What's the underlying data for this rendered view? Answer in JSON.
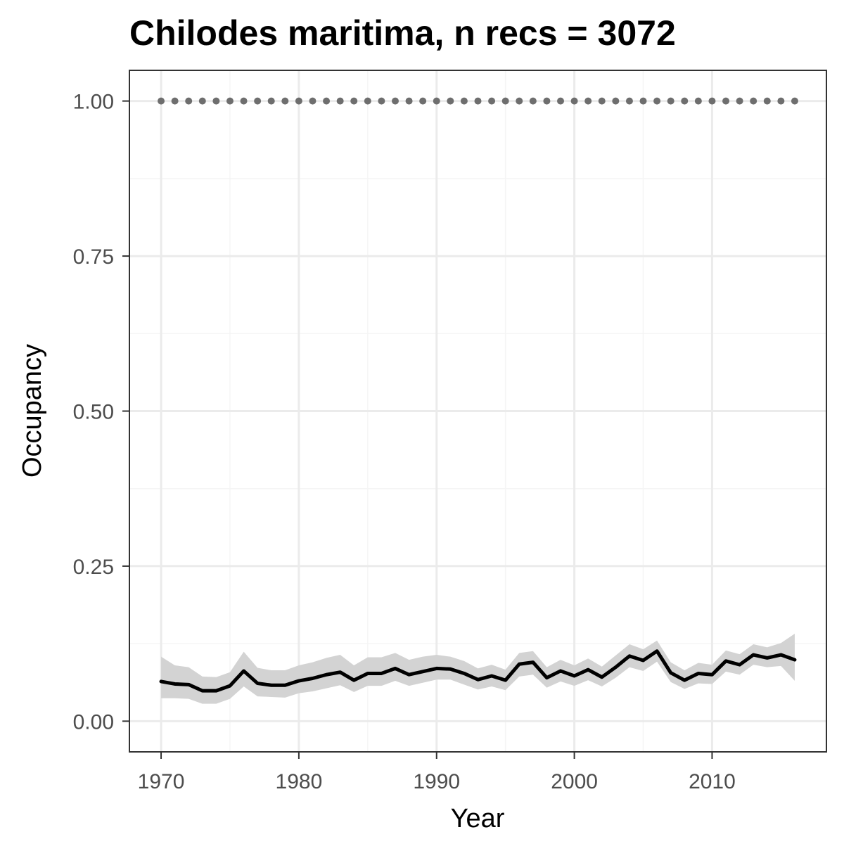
{
  "chart_data": {
    "type": "line",
    "title": "Chilodes maritima, n recs = 3072",
    "xlabel": "Year",
    "ylabel": "Occupancy",
    "xlim": [
      1967.7,
      2018.3
    ],
    "ylim": [
      -0.0495,
      1.0495
    ],
    "x_ticks": [
      1970,
      1980,
      1990,
      2000,
      2010
    ],
    "y_ticks": [
      0,
      0.25,
      0.5,
      0.75,
      1
    ],
    "y_tick_labels": [
      "0.00",
      "0.25",
      "0.50",
      "0.75",
      "1.00"
    ],
    "grid": true,
    "legend": "none",
    "series": [
      {
        "role": "occupancy-mean",
        "style": "solid",
        "color": "#000000",
        "x": [
          1970,
          1971,
          1972,
          1973,
          1974,
          1975,
          1976,
          1977,
          1978,
          1979,
          1980,
          1981,
          1982,
          1983,
          1984,
          1985,
          1986,
          1987,
          1988,
          1989,
          1990,
          1991,
          1992,
          1993,
          1994,
          1995,
          1996,
          1997,
          1998,
          1999,
          2000,
          2001,
          2002,
          2003,
          2004,
          2005,
          2006,
          2007,
          2008,
          2009,
          2010,
          2011,
          2012,
          2013,
          2014,
          2015,
          2016
        ],
        "values": [
          0.064,
          0.06,
          0.059,
          0.049,
          0.049,
          0.057,
          0.081,
          0.061,
          0.058,
          0.058,
          0.065,
          0.069,
          0.075,
          0.079,
          0.066,
          0.077,
          0.077,
          0.085,
          0.075,
          0.08,
          0.085,
          0.084,
          0.077,
          0.067,
          0.073,
          0.066,
          0.092,
          0.095,
          0.07,
          0.081,
          0.073,
          0.083,
          0.071,
          0.087,
          0.105,
          0.098,
          0.113,
          0.078,
          0.066,
          0.077,
          0.075,
          0.097,
          0.091,
          0.107,
          0.102,
          0.107,
          0.099
        ]
      },
      {
        "role": "detectability",
        "style": "dotted",
        "color": "#6e6e6e",
        "x": [
          1970,
          1971,
          1972,
          1973,
          1974,
          1975,
          1976,
          1977,
          1978,
          1979,
          1980,
          1981,
          1982,
          1983,
          1984,
          1985,
          1986,
          1987,
          1988,
          1989,
          1990,
          1991,
          1992,
          1993,
          1994,
          1995,
          1996,
          1997,
          1998,
          1999,
          2000,
          2001,
          2002,
          2003,
          2004,
          2005,
          2006,
          2007,
          2008,
          2009,
          2010,
          2011,
          2012,
          2013,
          2014,
          2015,
          2016
        ],
        "values": [
          1,
          1,
          1,
          1,
          1,
          1,
          1,
          1,
          1,
          1,
          1,
          1,
          1,
          1,
          1,
          1,
          1,
          1,
          1,
          1,
          1,
          1,
          1,
          1,
          1,
          1,
          1,
          1,
          1,
          1,
          1,
          1,
          1,
          1,
          1,
          1,
          1,
          1,
          1,
          1,
          1,
          1,
          1,
          1,
          1,
          1,
          1
        ]
      }
    ],
    "ribbon": {
      "color": "#d3d3d3",
      "x": [
        1970,
        1971,
        1972,
        1973,
        1974,
        1975,
        1976,
        1977,
        1978,
        1979,
        1980,
        1981,
        1982,
        1983,
        1984,
        1985,
        1986,
        1987,
        1988,
        1989,
        1990,
        1991,
        1992,
        1993,
        1994,
        1995,
        1996,
        1997,
        1998,
        1999,
        2000,
        2001,
        2002,
        2003,
        2004,
        2005,
        2006,
        2007,
        2008,
        2009,
        2010,
        2011,
        2012,
        2013,
        2014,
        2015,
        2016
      ],
      "lower": [
        0.037,
        0.037,
        0.036,
        0.028,
        0.028,
        0.036,
        0.056,
        0.04,
        0.039,
        0.038,
        0.045,
        0.048,
        0.053,
        0.058,
        0.047,
        0.057,
        0.057,
        0.065,
        0.057,
        0.062,
        0.067,
        0.067,
        0.059,
        0.051,
        0.056,
        0.05,
        0.072,
        0.075,
        0.054,
        0.064,
        0.057,
        0.066,
        0.056,
        0.07,
        0.087,
        0.081,
        0.096,
        0.063,
        0.052,
        0.061,
        0.06,
        0.08,
        0.075,
        0.091,
        0.087,
        0.089,
        0.065
      ],
      "upper": [
        0.104,
        0.09,
        0.087,
        0.072,
        0.071,
        0.079,
        0.112,
        0.086,
        0.082,
        0.082,
        0.09,
        0.095,
        0.102,
        0.107,
        0.09,
        0.103,
        0.103,
        0.11,
        0.099,
        0.104,
        0.107,
        0.104,
        0.097,
        0.085,
        0.091,
        0.083,
        0.11,
        0.113,
        0.087,
        0.099,
        0.09,
        0.101,
        0.088,
        0.106,
        0.124,
        0.116,
        0.13,
        0.095,
        0.082,
        0.094,
        0.091,
        0.114,
        0.108,
        0.124,
        0.119,
        0.126,
        0.141
      ]
    },
    "colors": {
      "panel_border": "#333333",
      "grid_major": "#ebebeb",
      "grid_minor": "#f5f5f5",
      "ribbon": "#d3d3d3",
      "tick_label": "#4d4d4d"
    }
  }
}
